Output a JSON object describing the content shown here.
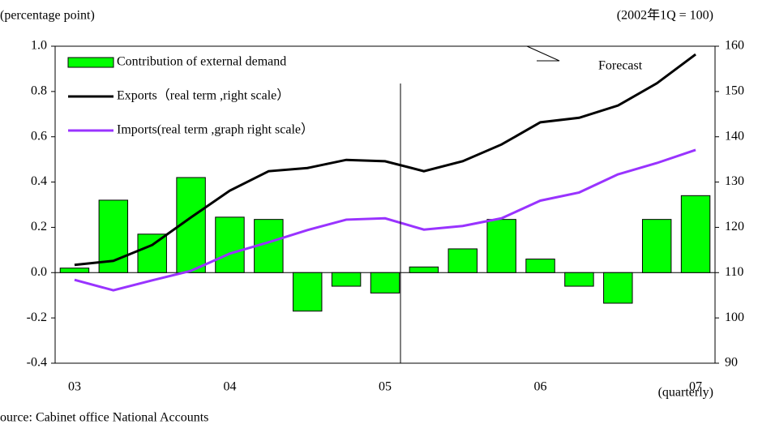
{
  "chart_data": {
    "type": "bar",
    "y_axis_label": "(percentage point)",
    "y2_axis_label": "(2002年1Q = 100)",
    "x_axis_label": "(quarterly)",
    "source": "ource:  Cabinet office National Accounts",
    "annotation": "Forecast",
    "categories": [
      "03",
      null,
      null,
      null,
      "04",
      null,
      null,
      null,
      "05",
      null,
      null,
      null,
      "06",
      null,
      null,
      null,
      "07"
    ],
    "series": [
      {
        "name": "Contribution of external demand",
        "type": "bar",
        "color": "#00ff00",
        "values": [
          0.02,
          0.32,
          0.17,
          0.42,
          0.245,
          0.235,
          -0.17,
          -0.06,
          -0.09,
          0.025,
          0.105,
          0.235,
          0.06,
          -0.06,
          -0.135,
          0.235,
          0.34
        ]
      },
      {
        "name": "Exports（real term ,right scale）",
        "type": "line",
        "axis": "y2",
        "color": "#000000",
        "values": [
          111.7,
          112.6,
          116.1,
          122.2,
          128.1,
          132.4,
          133.1,
          134.9,
          134.6,
          132.4,
          134.6,
          138.3,
          143.2,
          144.2,
          146.9,
          151.8,
          158.2
        ]
      },
      {
        "name": "Imports(real term ,graph right scale）",
        "type": "line",
        "axis": "y2",
        "color": "#9933ff",
        "values": [
          108.4,
          106.1,
          108.3,
          110.4,
          114.2,
          116.7,
          119.4,
          121.7,
          122.0,
          119.5,
          120.3,
          122.0,
          125.9,
          127.7,
          131.7,
          134.2,
          137.1
        ]
      }
    ],
    "ylim": [
      -0.4,
      1.0
    ],
    "yticks": [
      {
        "value": -0.4,
        "label": "-0.4"
      },
      {
        "value": -0.2,
        "label": "-0.2"
      },
      {
        "value": 0,
        "label": "0.0"
      },
      {
        "value": 0.2,
        "label": "0.2"
      },
      {
        "value": 0.4,
        "label": "0.4"
      },
      {
        "value": 0.6,
        "label": "0.6"
      },
      {
        "value": 0.8,
        "label": "0.8"
      },
      {
        "value": 1.0,
        "label": "1.0"
      }
    ],
    "y2lim": [
      90,
      160
    ],
    "y2ticks": [
      90,
      100,
      110,
      120,
      130,
      140,
      150,
      160
    ]
  }
}
